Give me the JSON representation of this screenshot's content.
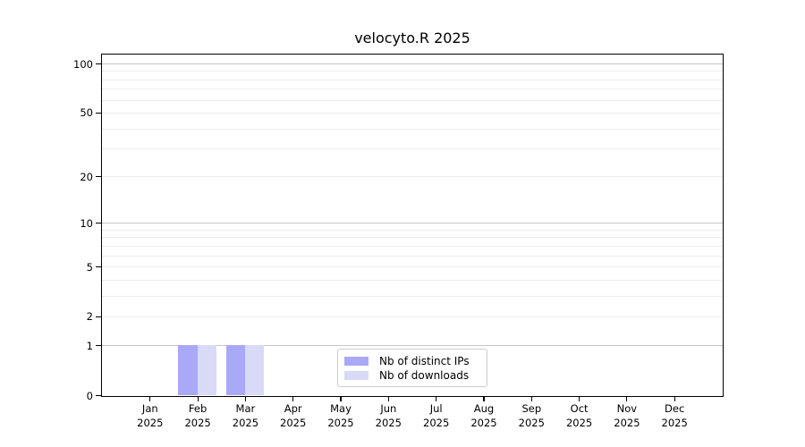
{
  "title": "velocyto.R 2025",
  "legend": {
    "items": [
      {
        "label": "Nb of distinct IPs",
        "color": "#a9a9f8"
      },
      {
        "label": "Nb of downloads",
        "color": "#d9d9f8"
      }
    ]
  },
  "colors": {
    "bar_distinct_ips": "#a9a9f8",
    "bar_downloads": "#d9d9f8",
    "grid_major": "#c6c6c6",
    "grid_minor": "#ededed",
    "spine": "#000000",
    "legend_border": "#cccccc",
    "text": "#000000"
  },
  "chart_data": {
    "type": "bar",
    "title": "velocyto.R 2025",
    "categories": [
      "Jan 2025",
      "Feb 2025",
      "Mar 2025",
      "Apr 2025",
      "May 2025",
      "Jun 2025",
      "Jul 2025",
      "Aug 2025",
      "Sep 2025",
      "Oct 2025",
      "Nov 2025",
      "Dec 2025"
    ],
    "x_tick_months": [
      "Jan",
      "Feb",
      "Mar",
      "Apr",
      "May",
      "Jun",
      "Jul",
      "Aug",
      "Sep",
      "Oct",
      "Nov",
      "Dec"
    ],
    "x_tick_year": "2025",
    "series": [
      {
        "name": "Nb of distinct IPs",
        "color": "#a9a9f8",
        "values": [
          0,
          1,
          1,
          0,
          0,
          0,
          0,
          0,
          0,
          0,
          0,
          0
        ]
      },
      {
        "name": "Nb of downloads",
        "color": "#d9d9f8",
        "values": [
          0,
          1,
          1,
          0,
          0,
          0,
          0,
          0,
          0,
          0,
          0,
          0
        ]
      }
    ],
    "xlabel": "",
    "ylabel": "",
    "yscale": "log10(1+y)",
    "ylim": [
      0,
      113
    ],
    "y_ticks": [
      0,
      1,
      2,
      5,
      10,
      20,
      50,
      100
    ],
    "y_major_grid": [
      1,
      10,
      100
    ],
    "y_minor_grid": [
      2,
      3,
      4,
      5,
      6,
      7,
      8,
      9,
      20,
      30,
      40,
      50,
      60,
      70,
      80,
      90
    ],
    "grid": "horizontal",
    "legend_position": "lower center"
  }
}
